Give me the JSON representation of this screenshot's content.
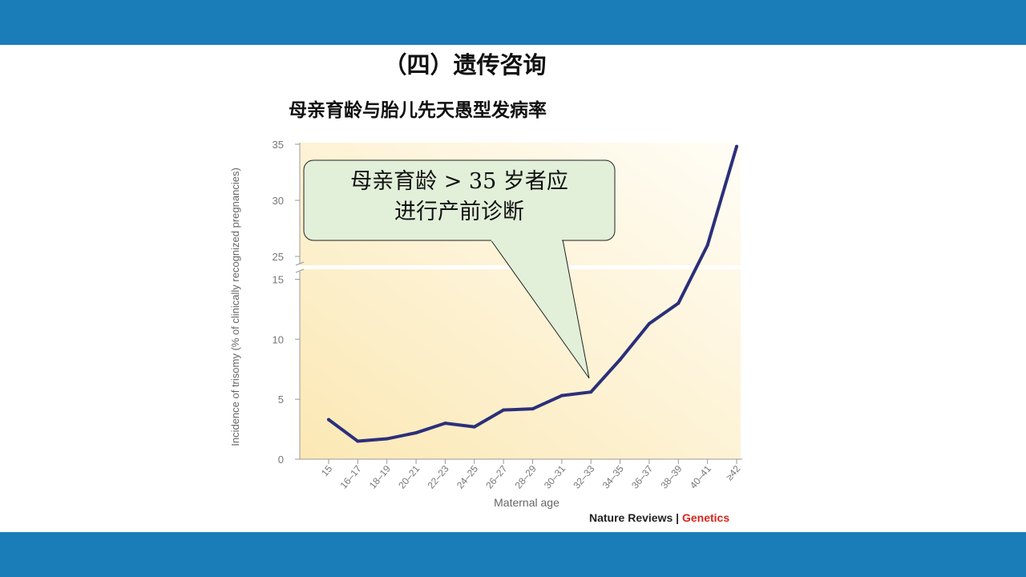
{
  "header": {
    "color": "#1a7db8"
  },
  "footer": {
    "color": "#1a7db8"
  },
  "slide": {
    "title": "（四）遗传咨询",
    "subtitle": "母亲育龄与胎儿先天愚型发病率"
  },
  "callout": {
    "line1": "母亲育龄 > 35 岁者应",
    "line2": "进行产前诊断",
    "fill": "#e2efd9"
  },
  "source": {
    "journal": "Nature Reviews",
    "separator": "|",
    "section": "Genetics"
  },
  "chart_data": {
    "type": "line",
    "xlabel": "Maternal age",
    "ylabel": "Incidence of trisomy (% of clinically recognized pregnancies)",
    "categories": [
      "15",
      "16–17",
      "18–19",
      "20–21",
      "22–23",
      "24–25",
      "26–27",
      "28–29",
      "30–31",
      "32–33",
      "34–35",
      "36–37",
      "38–39",
      "40–41",
      "≥42"
    ],
    "series": [
      {
        "values": [
          3.3,
          1.5,
          1.7,
          2.2,
          3.0,
          2.7,
          4.1,
          4.2,
          5.3,
          5.6,
          8.3,
          11.3,
          13.0,
          26.0,
          34.8
        ],
        "color": "#2b2f7a"
      }
    ],
    "yticks": [
      0,
      5,
      10,
      15,
      25,
      30,
      35
    ],
    "ylim": [
      0,
      35
    ],
    "axis_break": [
      15.5,
      24.5
    ],
    "grid": false,
    "background_gradient": [
      "#fbe8b4",
      "#fffdf6"
    ]
  }
}
